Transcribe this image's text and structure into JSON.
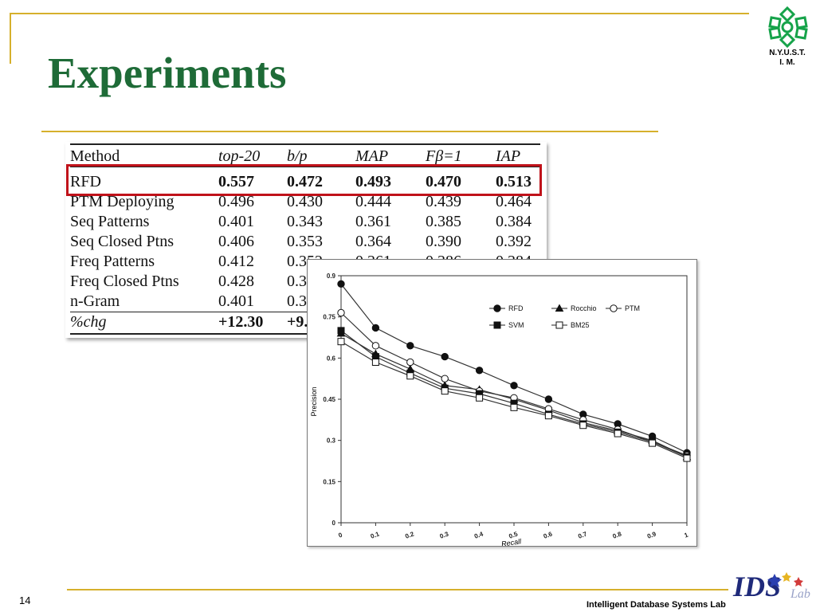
{
  "slide": {
    "title": "Experiments",
    "page_number": "14",
    "footer": "Intelligent Database Systems Lab",
    "logo_caption_line1": "N.Y.U.S.T.",
    "logo_caption_line2": "I. M.",
    "bottom_logo_text": "IDS",
    "bottom_logo_sub": "Lab"
  },
  "table": {
    "headers": [
      "Method",
      "top-20",
      "b/p",
      "MAP",
      "Fβ=1",
      "IAP"
    ],
    "rows": [
      {
        "method": "RFD",
        "values": [
          "0.557",
          "0.472",
          "0.493",
          "0.470",
          "0.513"
        ]
      },
      {
        "method": "PTM Deploying",
        "values": [
          "0.496",
          "0.430",
          "0.444",
          "0.439",
          "0.464"
        ]
      },
      {
        "method": "Seq Patterns",
        "values": [
          "0.401",
          "0.343",
          "0.361",
          "0.385",
          "0.384"
        ]
      },
      {
        "method": "Seq Closed Ptns",
        "values": [
          "0.406",
          "0.353",
          "0.364",
          "0.390",
          "0.392"
        ]
      },
      {
        "method": "Freq Patterns",
        "values": [
          "0.412",
          "0.352",
          "0.361",
          "0.386",
          "0.384"
        ]
      },
      {
        "method": "Freq Closed Ptns",
        "values": [
          "0.428",
          "0.3",
          "",
          "",
          ""
        ]
      },
      {
        "method": "n-Gram",
        "values": [
          "0.401",
          "0.3",
          "",
          "",
          ""
        ]
      }
    ],
    "change_row": {
      "method": "%chg",
      "values": [
        "+12.30",
        "+9.",
        "",
        "",
        ""
      ]
    },
    "highlight_color": "#c0121a"
  },
  "chart_data": {
    "type": "line",
    "xlabel": "Recall",
    "ylabel": "Precision",
    "xlim": [
      0,
      1
    ],
    "ylim": [
      0,
      0.9
    ],
    "x": [
      0,
      0.1,
      0.2,
      0.3,
      0.4,
      0.5,
      0.6,
      0.7,
      0.8,
      0.9,
      1
    ],
    "x_tick_labels": [
      "0",
      "0.1",
      "0.2",
      "0.3",
      "0.4",
      "0.5",
      "0.6",
      "0.7",
      "0.8",
      "0.9",
      "1"
    ],
    "y_ticks": [
      0,
      0.15,
      0.3,
      0.45,
      0.6,
      0.75,
      0.9
    ],
    "y_tick_labels": [
      "0",
      "0.15",
      "0.3",
      "0.45",
      "0.6",
      "0.75",
      "0.9"
    ],
    "legend_position": "top-right",
    "series": [
      {
        "name": "RFD",
        "marker": "filled-circle",
        "values": [
          0.87,
          0.71,
          0.645,
          0.605,
          0.555,
          0.5,
          0.45,
          0.395,
          0.36,
          0.315,
          0.255
        ]
      },
      {
        "name": "Rocchio",
        "marker": "filled-triangle",
        "values": [
          0.69,
          0.615,
          0.56,
          0.5,
          0.485,
          0.45,
          0.41,
          0.365,
          0.335,
          0.3,
          0.24
        ]
      },
      {
        "name": "PTM",
        "marker": "open-circle",
        "values": [
          0.765,
          0.645,
          0.585,
          0.525,
          0.48,
          0.455,
          0.415,
          0.375,
          0.34,
          0.295,
          0.245
        ]
      },
      {
        "name": "SVM",
        "marker": "filled-square",
        "values": [
          0.7,
          0.605,
          0.545,
          0.49,
          0.47,
          0.435,
          0.395,
          0.36,
          0.33,
          0.295,
          0.24
        ]
      },
      {
        "name": "BM25",
        "marker": "open-square",
        "values": [
          0.66,
          0.585,
          0.535,
          0.48,
          0.455,
          0.42,
          0.39,
          0.355,
          0.325,
          0.29,
          0.235
        ]
      }
    ]
  }
}
